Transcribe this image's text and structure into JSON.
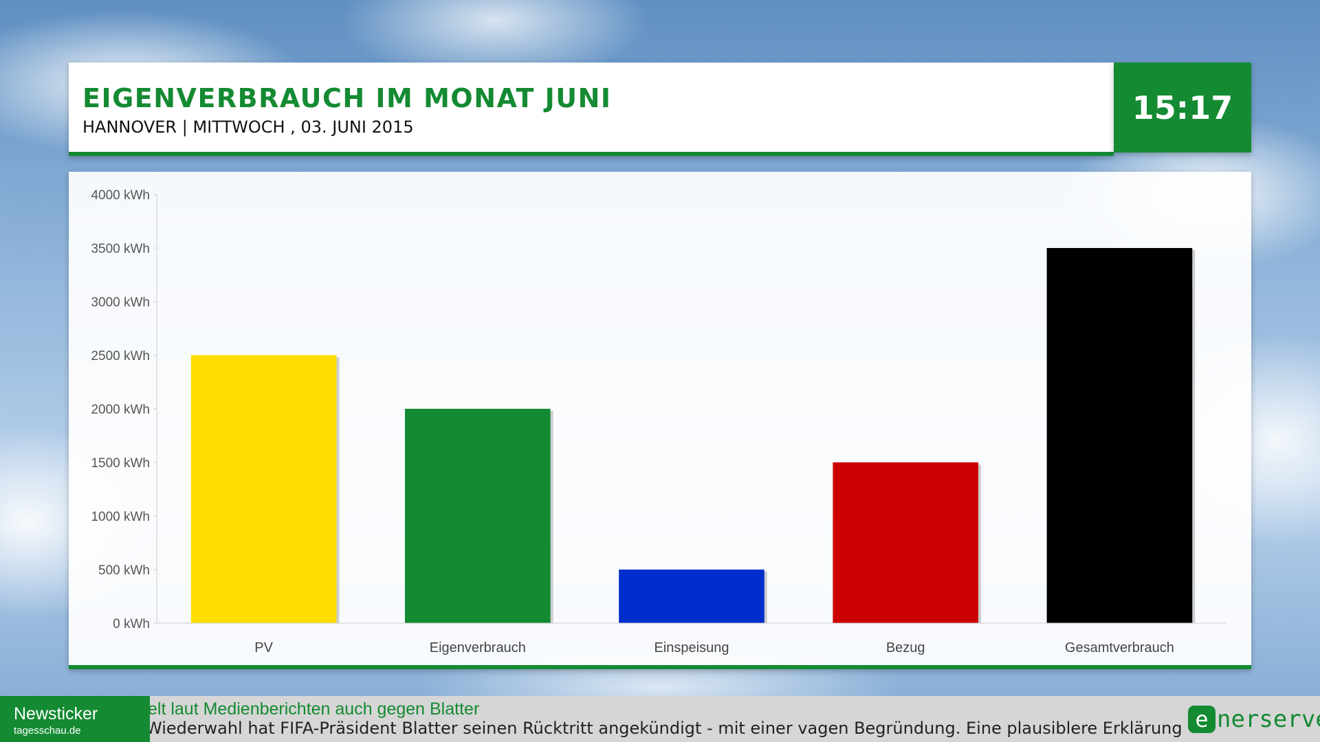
{
  "header": {
    "title": "EIGENVERBRAUCH IM MONAT JUNI",
    "subtitle": "HANNOVER | MITTWOCH , 03. JUNI 2015",
    "clock": "15:17"
  },
  "chart_data": {
    "type": "bar",
    "categories": [
      "PV",
      "Eigenverbrauch",
      "Einspeisung",
      "Bezug",
      "Gesamtverbrauch"
    ],
    "values": [
      2500,
      2000,
      500,
      1500,
      3500
    ],
    "colors": [
      "#ffdd00",
      "#128a32",
      "#002ecc",
      "#cc0000",
      "#000000"
    ],
    "ylim": [
      0,
      4000
    ],
    "y_ticks": [
      "0 kWh",
      "500 kWh",
      "1000 kWh",
      "1500 kWh",
      "2000 kWh",
      "2500 kWh",
      "3000 kWh",
      "3500 kWh",
      "4000 kWh"
    ],
    "grid": false,
    "title": "",
    "xlabel": "",
    "ylabel": ""
  },
  "ticker": {
    "label": "Newsticker",
    "source": "tagesschau.de",
    "headline": "elt laut Medienberichten auch gegen Blatter",
    "body": "Wiederwahl hat FIFA-Präsident Blatter seinen Rücktritt angekündigt - mit einer vagen Begründung. Eine plausiblere Erklärung kommt a"
  },
  "brand": {
    "badge": "e",
    "text": "nerserve"
  },
  "colors": {
    "accent_green": "#148a32"
  }
}
